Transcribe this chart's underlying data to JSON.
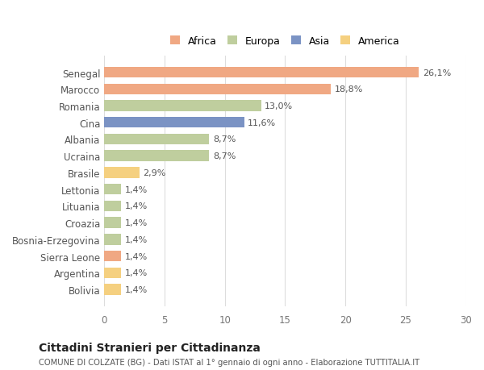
{
  "categories": [
    "Senegal",
    "Marocco",
    "Romania",
    "Cina",
    "Albania",
    "Ucraina",
    "Brasile",
    "Lettonia",
    "Lituania",
    "Croazia",
    "Bosnia-Erzegovina",
    "Sierra Leone",
    "Argentina",
    "Bolivia"
  ],
  "values": [
    26.1,
    18.8,
    13.0,
    11.6,
    8.7,
    8.7,
    2.9,
    1.4,
    1.4,
    1.4,
    1.4,
    1.4,
    1.4,
    1.4
  ],
  "labels": [
    "26,1%",
    "18,8%",
    "13,0%",
    "11,6%",
    "8,7%",
    "8,7%",
    "2,9%",
    "1,4%",
    "1,4%",
    "1,4%",
    "1,4%",
    "1,4%",
    "1,4%",
    "1,4%"
  ],
  "continents": [
    "Africa",
    "Africa",
    "Europa",
    "Asia",
    "Europa",
    "Europa",
    "America",
    "Europa",
    "Europa",
    "Europa",
    "Europa",
    "Africa",
    "America",
    "America"
  ],
  "colors": {
    "Africa": "#F0A883",
    "Europa": "#BFCE9E",
    "Asia": "#7B93C4",
    "America": "#F5D080"
  },
  "legend_order": [
    "Africa",
    "Europa",
    "Asia",
    "America"
  ],
  "xlim": [
    0,
    30
  ],
  "xticks": [
    0,
    5,
    10,
    15,
    20,
    25,
    30
  ],
  "title": "Cittadini Stranieri per Cittadinanza",
  "subtitle": "COMUNE DI COLZATE (BG) - Dati ISTAT al 1° gennaio di ogni anno - Elaborazione TUTTITALIA.IT",
  "bg_color": "#FFFFFF",
  "grid_color": "#DDDDDD",
  "bar_height": 0.65
}
